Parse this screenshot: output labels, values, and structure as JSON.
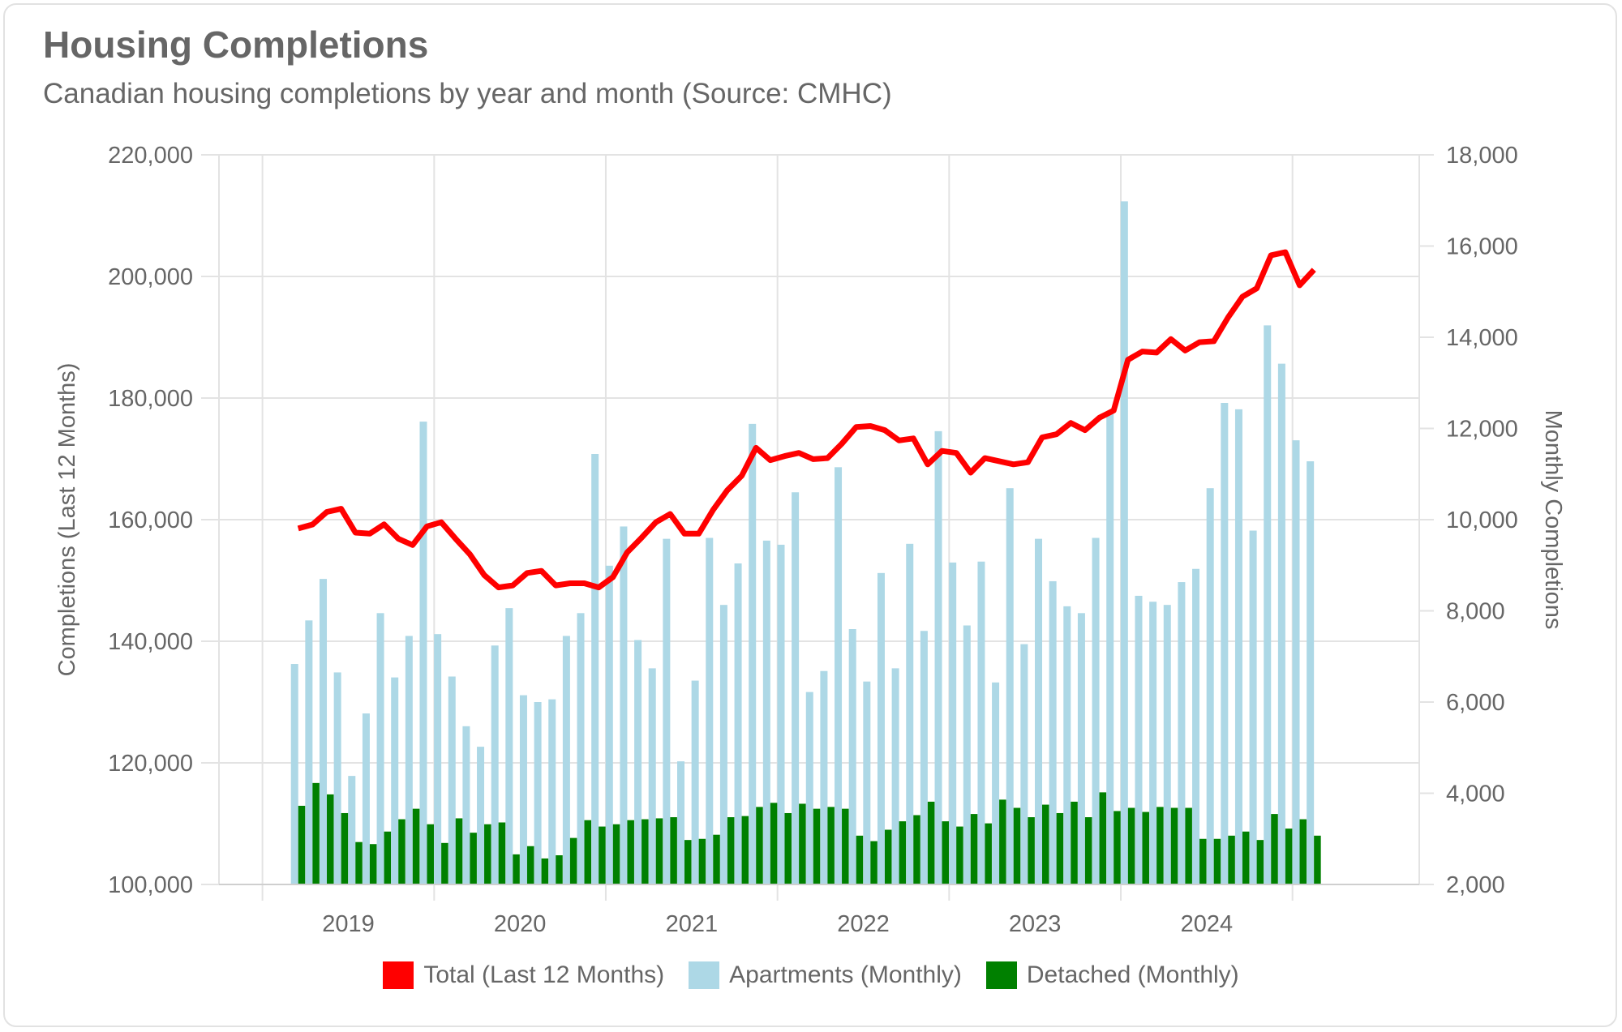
{
  "header": {
    "title": "Housing Completions",
    "subtitle": "Canadian housing completions by year and month (Source: CMHC)"
  },
  "colors": {
    "total": "#ff0000",
    "apartments": "#add8e6",
    "detached": "#008000"
  },
  "chart_data": {
    "type": "bar+line",
    "title": "Housing Completions",
    "subtitle": "Canadian housing completions by year and month (Source: CMHC)",
    "ylabel": "Completions (Last 12 Months)",
    "y2label": "Monthly Completions",
    "ylim": [
      100000,
      220000
    ],
    "y2lim": [
      2000,
      18000
    ],
    "yticks": [
      "100,000",
      "120,000",
      "140,000",
      "160,000",
      "180,000",
      "200,000",
      "220,000"
    ],
    "y2ticks": [
      "2,000",
      "4,000",
      "6,000",
      "8,000",
      "10,000",
      "12,000",
      "14,000",
      "16,000",
      "18,000"
    ],
    "xticks": [
      "2019",
      "2020",
      "2021",
      "2022",
      "2023",
      "2024"
    ],
    "start_month": "2019-03",
    "legend_position": "bottom",
    "series": [
      {
        "name": "Total (Last 12 Months)",
        "type": "line",
        "axis": "left",
        "values": [
          158550,
          159200,
          161270,
          161780,
          157870,
          157700,
          159230,
          156850,
          155830,
          158890,
          159570,
          156850,
          154290,
          150890,
          148850,
          149190,
          151230,
          151570,
          149190,
          149530,
          149530,
          148850,
          150550,
          154630,
          157020,
          159570,
          160930,
          157700,
          157700,
          161610,
          164850,
          167230,
          171820,
          169780,
          170460,
          170970,
          169950,
          170120,
          172500,
          175230,
          175400,
          174720,
          173020,
          173360,
          169100,
          171310,
          170970,
          167740,
          170120,
          169610,
          169100,
          169440,
          173530,
          174040,
          175910,
          174720,
          176760,
          177950,
          186290,
          187650,
          187480,
          189700,
          187820,
          189180,
          189350,
          193270,
          196670,
          198040,
          203480,
          203990,
          198550,
          201100
        ]
      },
      {
        "name": "Apartments (Monthly)",
        "type": "bar",
        "axis": "right",
        "values": [
          6835,
          7790,
          8700,
          6650,
          4380,
          5750,
          7950,
          6540,
          7450,
          12150,
          7490,
          6560,
          5470,
          5020,
          7240,
          8060,
          6150,
          6000,
          6060,
          7450,
          7950,
          11440,
          8990,
          9850,
          7360,
          6740,
          9580,
          4700,
          6470,
          9600,
          8130,
          9040,
          12100,
          9540,
          9450,
          10600,
          6220,
          6680,
          11150,
          7600,
          6450,
          8830,
          6740,
          9470,
          7560,
          11940,
          9060,
          7680,
          9080,
          6430,
          10690,
          7270,
          9580,
          8650,
          8100,
          7950,
          9600,
          12330,
          16980,
          8330,
          8200,
          8130,
          8630,
          8920,
          10690,
          12560,
          12420,
          9760,
          14260,
          13420,
          11740,
          11280
        ]
      },
      {
        "name": "Detached (Monthly)",
        "type": "bar",
        "axis": "right",
        "values": [
          3725,
          4225,
          3975,
          3565,
          2930,
          2885,
          3160,
          3430,
          3660,
          3320,
          2910,
          3450,
          3135,
          3320,
          3360,
          2660,
          2840,
          2570,
          2640,
          3020,
          3410,
          3270,
          3320,
          3410,
          3430,
          3450,
          3475,
          2975,
          3000,
          3090,
          3475,
          3500,
          3700,
          3790,
          3565,
          3770,
          3660,
          3700,
          3660,
          3070,
          2950,
          3200,
          3385,
          3520,
          3815,
          3385,
          3270,
          3545,
          3340,
          3860,
          3680,
          3475,
          3750,
          3565,
          3815,
          3475,
          4020,
          3610,
          3680,
          3590,
          3700,
          3680,
          3680,
          3000,
          3000,
          3070,
          3160,
          2975,
          3545,
          3225,
          3430,
          3070
        ]
      }
    ]
  }
}
